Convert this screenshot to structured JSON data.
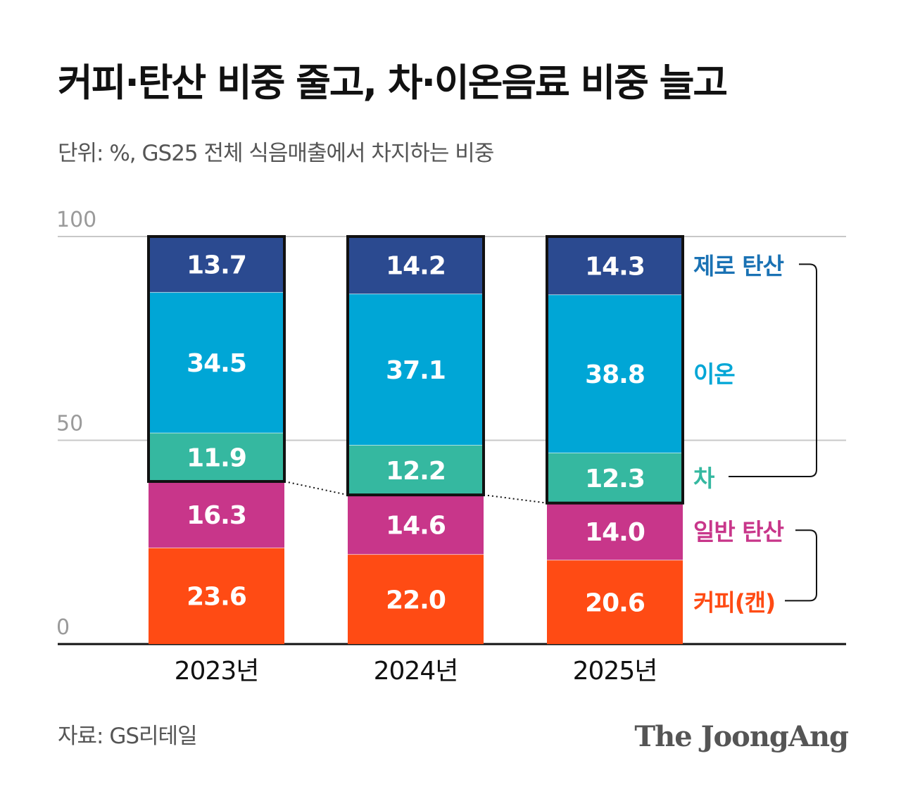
{
  "title": "커피·탄산 비중 줄고, 차·이온음료 비중 늘고",
  "subtitle": "단위: %, GS25 전체 식음매출에서 차지하는 비중",
  "source": "자료: GS리테일",
  "logo": "The JoongAng",
  "chart_data": {
    "type": "bar",
    "stacked": true,
    "categories": [
      "2023년",
      "2024년",
      "2025년"
    ],
    "ylim": [
      0,
      100
    ],
    "yticks": [
      "0",
      "50",
      "100"
    ],
    "grid": true,
    "legend_placement": "right",
    "series": [
      {
        "name": "커피(캔)",
        "color": "#ff4b14",
        "values": [
          23.6,
          22.0,
          20.6
        ],
        "labels": [
          "23.6",
          "22.0",
          "20.6"
        ]
      },
      {
        "name": "일반 탄산",
        "color": "#c8368a",
        "values": [
          16.3,
          14.6,
          14.0
        ],
        "labels": [
          "16.3",
          "14.6",
          "14.0"
        ]
      },
      {
        "name": "차",
        "color": "#35b8a0",
        "values": [
          11.9,
          12.2,
          12.3
        ],
        "labels": [
          "11.9",
          "12.2",
          "12.3"
        ]
      },
      {
        "name": "이온",
        "color": "#00a6d6",
        "values": [
          34.5,
          37.1,
          38.8
        ],
        "labels": [
          "34.5",
          "37.1",
          "38.8"
        ]
      },
      {
        "name": "제로 탄산",
        "color": "#2b4a90",
        "values": [
          13.7,
          14.2,
          14.3
        ],
        "labels": [
          "13.7",
          "14.2",
          "14.3"
        ]
      }
    ],
    "legend_colors": {
      "제로 탄산": "#1a72b4",
      "이온": "#00a6d6",
      "차": "#35b8a0",
      "일반 탄산": "#c8368a",
      "커피(캔)": "#ff4b14"
    }
  }
}
